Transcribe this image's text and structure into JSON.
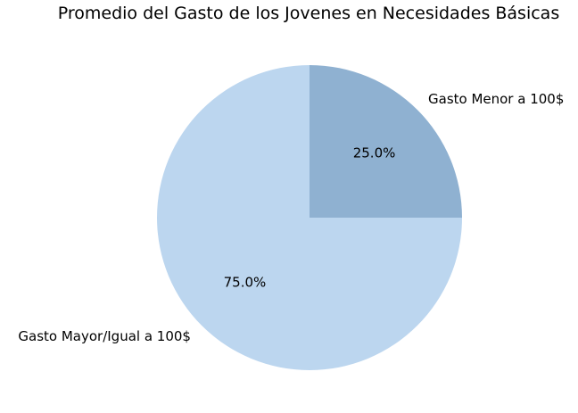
{
  "chart_data": {
    "type": "pie",
    "title": "Promedio del Gasto de los Jovenes en Necesidades Básicas",
    "slices": [
      {
        "label": "Gasto Menor a 100$",
        "value": 25.0,
        "pct_label": "25.0%",
        "color": "#8fb1d1"
      },
      {
        "label": "Gasto Mayor/Igual a 100$",
        "value": 75.0,
        "pct_label": "75.0%",
        "color": "#bcd6ef"
      }
    ],
    "start_angle_deg": 90,
    "direction": "clockwise",
    "legend": "none"
  }
}
